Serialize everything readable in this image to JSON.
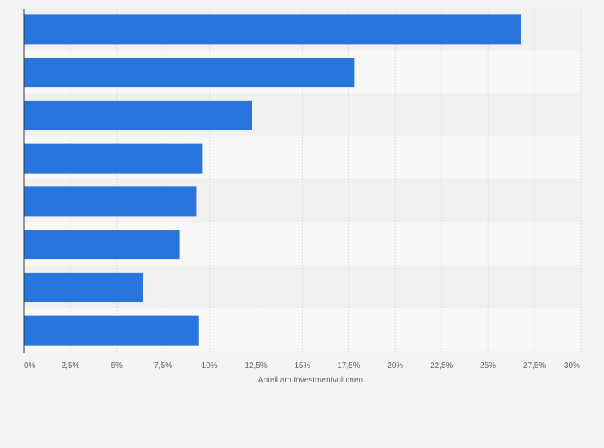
{
  "chart_data": {
    "type": "bar",
    "orientation": "horizontal",
    "categories": [
      "",
      "",
      "",
      "",
      "",
      "",
      "",
      ""
    ],
    "values": [
      26.8,
      17.8,
      12.3,
      9.6,
      9.3,
      8.4,
      6.4,
      9.4
    ],
    "xlim": [
      0,
      30
    ],
    "xticks": [
      "0%",
      "2,5%",
      "5%",
      "7,5%",
      "10%",
      "12,5%",
      "15%",
      "17,5%",
      "20%",
      "22,5%",
      "25%",
      "27,5%",
      "30%"
    ],
    "xlabel": "Anteil am Investmentvolumen",
    "ylabel": "",
    "title": "",
    "grid": true,
    "legend": "none",
    "colors": {
      "bar": "#2876dd",
      "band_dark": "#f1f1f1",
      "band_light": "#f8f8f8",
      "grid": "#d9d9d9",
      "axis": "#333333",
      "text": "#666666"
    }
  }
}
